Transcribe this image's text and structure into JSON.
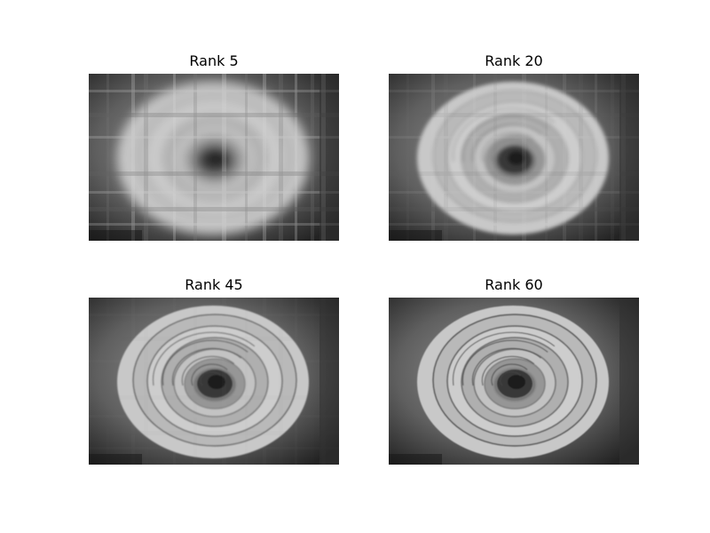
{
  "panels": [
    {
      "title": "Rank 5",
      "blur": 6.0,
      "blockiness": 0.9,
      "detail": 0.15
    },
    {
      "title": "Rank 20",
      "blur": 2.2,
      "blockiness": 0.35,
      "detail": 0.55
    },
    {
      "title": "Rank 45",
      "blur": 0.8,
      "blockiness": 0.08,
      "detail": 0.9
    },
    {
      "title": "Rank 60",
      "blur": 0.5,
      "blockiness": 0.0,
      "detail": 1.0
    }
  ]
}
